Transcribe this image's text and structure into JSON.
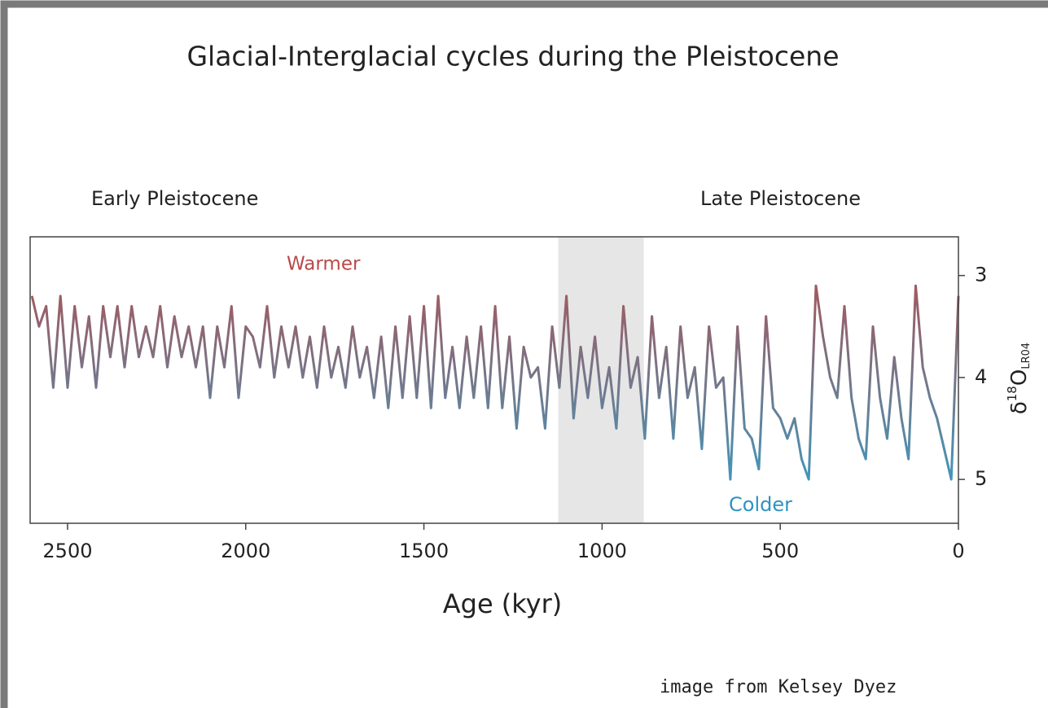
{
  "chart_data": {
    "type": "line",
    "title": "Glacial-Interglacial cycles during the Pleistocene",
    "annotations": {
      "early": "Early Pleistocene",
      "late": "Late Pleistocene",
      "warm": "Warmer",
      "cold": "Colder",
      "credit": "image from Kelsey Dyez"
    },
    "x_label": "Age (kyr)",
    "y_label": [
      "δ",
      "18",
      "O",
      "LR04"
    ],
    "xlim": [
      2605,
      0
    ],
    "xticks": [
      2500,
      2000,
      1500,
      1000,
      500,
      0
    ],
    "ylim": [
      2.62,
      5.43
    ],
    "yticks": [
      3,
      4,
      5
    ],
    "y_inverted": true,
    "shaded_region": [
      1123,
      883
    ],
    "gradient": [
      "#b94a48",
      "#2fa3cc"
    ],
    "x": [
      2600,
      2580,
      2560,
      2540,
      2520,
      2500,
      2480,
      2460,
      2440,
      2420,
      2400,
      2380,
      2360,
      2340,
      2320,
      2300,
      2280,
      2260,
      2240,
      2220,
      2200,
      2180,
      2160,
      2140,
      2120,
      2100,
      2080,
      2060,
      2040,
      2020,
      2000,
      1980,
      1960,
      1940,
      1920,
      1900,
      1880,
      1860,
      1840,
      1820,
      1800,
      1780,
      1760,
      1740,
      1720,
      1700,
      1680,
      1660,
      1640,
      1620,
      1600,
      1580,
      1560,
      1540,
      1520,
      1500,
      1480,
      1460,
      1440,
      1420,
      1400,
      1380,
      1360,
      1340,
      1320,
      1300,
      1280,
      1260,
      1240,
      1220,
      1200,
      1180,
      1160,
      1140,
      1120,
      1100,
      1080,
      1060,
      1040,
      1020,
      1000,
      980,
      960,
      940,
      920,
      900,
      880,
      860,
      840,
      820,
      800,
      780,
      760,
      740,
      720,
      700,
      680,
      660,
      640,
      620,
      600,
      580,
      560,
      540,
      520,
      500,
      480,
      460,
      440,
      420,
      400,
      380,
      360,
      340,
      320,
      300,
      280,
      260,
      240,
      220,
      200,
      180,
      160,
      140,
      120,
      100,
      80,
      60,
      40,
      20,
      0
    ],
    "values": [
      3.2,
      3.5,
      3.3,
      4.1,
      3.2,
      4.1,
      3.3,
      3.9,
      3.4,
      4.1,
      3.3,
      3.8,
      3.3,
      3.9,
      3.3,
      3.8,
      3.5,
      3.8,
      3.3,
      3.9,
      3.4,
      3.8,
      3.5,
      3.9,
      3.5,
      4.2,
      3.5,
      3.9,
      3.3,
      4.2,
      3.5,
      3.6,
      3.9,
      3.3,
      4.0,
      3.5,
      3.9,
      3.5,
      4.0,
      3.6,
      4.1,
      3.5,
      4.0,
      3.7,
      4.1,
      3.5,
      4.0,
      3.7,
      4.2,
      3.6,
      4.3,
      3.5,
      4.2,
      3.4,
      4.2,
      3.3,
      4.3,
      3.2,
      4.2,
      3.7,
      4.3,
      3.6,
      4.2,
      3.5,
      4.3,
      3.3,
      4.3,
      3.6,
      4.5,
      3.7,
      4.0,
      3.9,
      4.5,
      3.5,
      4.1,
      3.2,
      4.4,
      3.7,
      4.2,
      3.6,
      4.3,
      3.9,
      4.5,
      3.3,
      4.1,
      3.8,
      4.6,
      3.4,
      4.2,
      3.7,
      4.6,
      3.5,
      4.2,
      3.9,
      4.7,
      3.5,
      4.1,
      4.0,
      5.0,
      3.5,
      4.5,
      4.6,
      4.9,
      3.4,
      4.3,
      4.4,
      4.6,
      4.4,
      4.8,
      5.0,
      3.1,
      3.6,
      4.0,
      4.2,
      3.3,
      4.2,
      4.6,
      4.8,
      3.5,
      4.2,
      4.6,
      3.8,
      4.4,
      4.8,
      3.1,
      3.9,
      4.2,
      4.4,
      4.7,
      5.0,
      3.2
    ]
  }
}
